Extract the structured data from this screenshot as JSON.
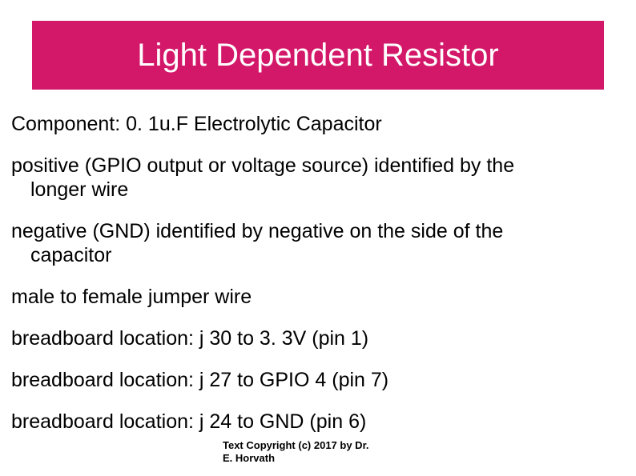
{
  "slide": {
    "title": "Light Dependent Resistor",
    "title_bg_color": "#d3186a",
    "title_text_color": "#ffffff",
    "title_fontsize": 40,
    "body_fontsize": 25,
    "body_text_color": "#000000",
    "background_color": "#ffffff",
    "paragraphs": [
      {
        "line1": "Component: 0. 1u.F Electrolytic Capacitor",
        "line2": ""
      },
      {
        "line1": "positive (GPIO output or voltage source) identified by the",
        "line2": "longer wire"
      },
      {
        "line1": "negative (GND) identified by negative on the side of the",
        "line2": "capacitor"
      },
      {
        "line1": "male to female jumper wire",
        "line2": ""
      },
      {
        "line1": "breadboard location: j 30 to 3. 3V (pin 1)",
        "line2": ""
      },
      {
        "line1": "breadboard location: j 27 to GPIO 4 (pin 7)",
        "line2": ""
      },
      {
        "line1": "breadboard location: j 24 to GND (pin 6)",
        "line2": ""
      }
    ],
    "footer_line1": "Text Copyright (c) 2017 by Dr.",
    "footer_line2": "E. Horvath",
    "footer_fontsize": 13
  }
}
